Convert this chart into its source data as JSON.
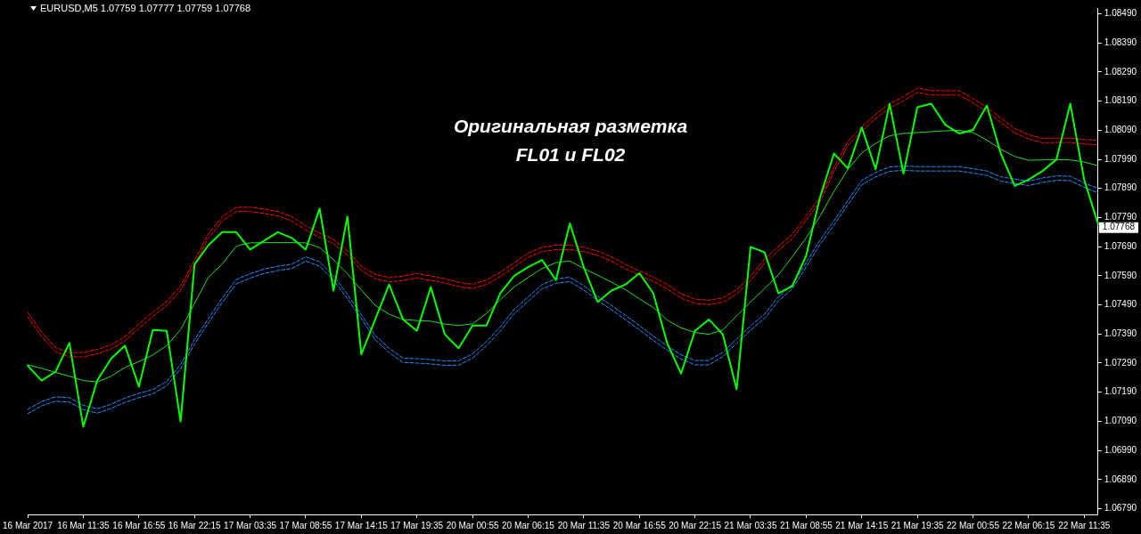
{
  "chart_data": {
    "type": "line",
    "title": "EURUSD,M5 1.07759 1.07777 1.07759 1.07768",
    "annotations": [
      "Оригинальная разметка",
      "FL01 и FL02",
      "1.07768"
    ],
    "categories": [
      "16 Mar 2017",
      null,
      null,
      null,
      "16 Mar 11:35",
      null,
      null,
      null,
      "16 Mar 16:55",
      null,
      null,
      null,
      "16 Mar 22:15",
      null,
      null,
      null,
      "17 Mar 03:35",
      null,
      null,
      null,
      "17 Mar 08:55",
      null,
      null,
      null,
      "17 Mar 14:15",
      null,
      null,
      null,
      "17 Mar 19:35",
      null,
      null,
      null,
      "20 Mar 00:55",
      null,
      null,
      null,
      "20 Mar 06:15",
      null,
      null,
      null,
      "20 Mar 11:35",
      null,
      null,
      null,
      "20 Mar 16:55",
      null,
      null,
      null,
      "20 Mar 22:15",
      null,
      null,
      null,
      "21 Mar 03:35",
      null,
      null,
      null,
      "21 Mar 08:55",
      null,
      null,
      null,
      "21 Mar 14:15",
      null,
      null,
      null,
      "21 Mar 19:35",
      null,
      null,
      null,
      "22 Mar 00:55",
      null,
      null,
      null,
      "22 Mar 06:15",
      null,
      null,
      null,
      "22 Mar 11:35",
      null
    ],
    "ylim": [
      1.0677,
      1.0851
    ],
    "yticks": [
      {
        "value": 1.0679,
        "label": "1.06790"
      },
      {
        "value": 1.0689,
        "label": "1.06890"
      },
      {
        "value": 1.0699,
        "label": "1.06990"
      },
      {
        "value": 1.0709,
        "label": "1.07090"
      },
      {
        "value": 1.0719,
        "label": "1.07190"
      },
      {
        "value": 1.0729,
        "label": "1.07290"
      },
      {
        "value": 1.0739,
        "label": "1.07390"
      },
      {
        "value": 1.0749,
        "label": "1.07490"
      },
      {
        "value": 1.0759,
        "label": "1.07590"
      },
      {
        "value": 1.0769,
        "label": "1.07690"
      },
      {
        "value": 1.0779,
        "label": "1.07790"
      },
      {
        "value": 1.0789,
        "label": "1.07890"
      },
      {
        "value": 1.0799,
        "label": "1.07990"
      },
      {
        "value": 1.0809,
        "label": "1.08090"
      },
      {
        "value": 1.0819,
        "label": "1.08190"
      },
      {
        "value": 1.0829,
        "label": "1.08290"
      },
      {
        "value": 1.0839,
        "label": "1.08390"
      },
      {
        "value": 1.0849,
        "label": "1.08490"
      }
    ],
    "marker": "none",
    "series": [
      {
        "color": "#00ff00",
        "line_style": "solid",
        "values": [
          1.07281,
          1.0723,
          1.0726,
          1.07359,
          1.07071,
          1.0723,
          1.07305,
          1.0735,
          1.07209,
          1.07404,
          1.07401,
          1.07089,
          1.07629,
          1.07695,
          1.0774,
          1.0774,
          1.0768,
          1.0771,
          1.0774,
          1.0772,
          1.0768,
          1.07821,
          1.07539,
          1.07794,
          1.0732,
          1.0744,
          1.0756,
          1.0744,
          1.07401,
          1.07551,
          1.07389,
          1.07341,
          1.07419,
          1.07419,
          1.0753,
          1.0759,
          1.0762,
          1.07644,
          1.07575,
          1.0777,
          1.0762,
          1.075,
          1.07539,
          1.0756,
          1.07599,
          1.0753,
          1.07359,
          1.07254,
          1.07401,
          1.0744,
          1.07389,
          1.072,
          1.07689,
          1.07671,
          1.0753,
          1.07554,
          1.07659,
          1.0786,
          1.0801,
          1.07959,
          1.081,
          1.07956,
          1.08181,
          1.07941,
          1.08169,
          1.08181,
          1.08109,
          1.08079,
          1.08091,
          1.08175,
          1.0801,
          1.07899,
          1.0792,
          1.0795,
          1.07989,
          1.08181,
          1.0792,
          1.07768
        ]
      },
      {
        "color": "#22dd22",
        "line_style": "solid",
        "values": [
          1.07284,
          1.07272,
          1.07258,
          1.07245,
          1.0723,
          1.07225,
          1.07245,
          1.07275,
          1.07295,
          1.07318,
          1.0735,
          1.07405,
          1.07495,
          1.07585,
          1.0763,
          1.07692,
          1.07703,
          1.07704,
          1.07704,
          1.07704,
          1.07703,
          1.07687,
          1.07645,
          1.07597,
          1.07541,
          1.07488,
          1.07458,
          1.0744,
          1.07436,
          1.07434,
          1.07424,
          1.07419,
          1.07425,
          1.0746,
          1.07507,
          1.07552,
          1.07584,
          1.07615,
          1.07635,
          1.07641,
          1.07615,
          1.07592,
          1.07568,
          1.07542,
          1.07511,
          1.07481,
          1.07438,
          1.07411,
          1.07395,
          1.07389,
          1.07404,
          1.07452,
          1.075,
          1.07546,
          1.07593,
          1.07655,
          1.0772,
          1.07795,
          1.0788,
          1.07955,
          1.08012,
          1.08045,
          1.08071,
          1.08079,
          1.08082,
          1.08085,
          1.08088,
          1.0809,
          1.08082,
          1.08056,
          1.08025,
          1.08,
          1.07987,
          1.07988,
          1.07989,
          1.07988,
          1.07981,
          1.07968
        ]
      },
      {
        "color": "#ff0000",
        "line_style": "dashed",
        "values": [
          1.07464,
          1.07396,
          1.07344,
          1.07326,
          1.07326,
          1.07337,
          1.07353,
          1.07381,
          1.07424,
          1.07465,
          1.07502,
          1.07555,
          1.07643,
          1.07734,
          1.07793,
          1.07825,
          1.07826,
          1.07819,
          1.07811,
          1.07793,
          1.07762,
          1.07737,
          1.07715,
          1.07676,
          1.07623,
          1.07595,
          1.07584,
          1.07589,
          1.07598,
          1.07589,
          1.0758,
          1.07568,
          1.07561,
          1.07575,
          1.07602,
          1.07635,
          1.07668,
          1.07688,
          1.07695,
          1.07695,
          1.07688,
          1.07675,
          1.07655,
          1.07629,
          1.07607,
          1.07586,
          1.0756,
          1.07528,
          1.0751,
          1.07506,
          1.07514,
          1.07542,
          1.07588,
          1.07647,
          1.07691,
          1.07732,
          1.07796,
          1.0786,
          1.07962,
          1.08052,
          1.08102,
          1.08145,
          1.08181,
          1.08206,
          1.08235,
          1.08226,
          1.08226,
          1.08226,
          1.08199,
          1.08169,
          1.08132,
          1.08096,
          1.08075,
          1.08062,
          1.08063,
          1.08063,
          1.08058,
          1.08055
        ]
      },
      {
        "color": "#ff0000",
        "line_style": "dashed",
        "values": [
          1.07449,
          1.07381,
          1.07329,
          1.07311,
          1.07311,
          1.07322,
          1.07338,
          1.07366,
          1.07409,
          1.0745,
          1.07487,
          1.0754,
          1.07628,
          1.07719,
          1.07778,
          1.0781,
          1.07811,
          1.07804,
          1.07796,
          1.07778,
          1.07747,
          1.07722,
          1.077,
          1.07661,
          1.07608,
          1.0758,
          1.07569,
          1.07574,
          1.07583,
          1.07574,
          1.07565,
          1.07553,
          1.07546,
          1.0756,
          1.07587,
          1.0762,
          1.07653,
          1.07673,
          1.0768,
          1.0768,
          1.07673,
          1.0766,
          1.0764,
          1.07614,
          1.07592,
          1.07571,
          1.07545,
          1.07513,
          1.07495,
          1.07491,
          1.07499,
          1.07527,
          1.07573,
          1.07632,
          1.07676,
          1.07717,
          1.07781,
          1.07845,
          1.07947,
          1.08037,
          1.08087,
          1.0813,
          1.08166,
          1.08191,
          1.0822,
          1.08211,
          1.08211,
          1.08211,
          1.08184,
          1.08154,
          1.08117,
          1.08081,
          1.0806,
          1.08047,
          1.08048,
          1.08048,
          1.08043,
          1.0804
        ]
      },
      {
        "color": "#1e90ff",
        "line_style": "dashed",
        "values": [
          1.07131,
          1.07158,
          1.07174,
          1.07171,
          1.07145,
          1.07133,
          1.07149,
          1.0717,
          1.07186,
          1.07199,
          1.07227,
          1.07285,
          1.0737,
          1.07443,
          1.07514,
          1.07577,
          1.07597,
          1.07613,
          1.07623,
          1.0763,
          1.07655,
          1.07638,
          1.0759,
          1.07526,
          1.07457,
          1.07385,
          1.07341,
          1.07307,
          1.07305,
          1.07302,
          1.07297,
          1.07298,
          1.07322,
          1.07364,
          1.07415,
          1.07475,
          1.07517,
          1.0756,
          1.07579,
          1.07585,
          1.07556,
          1.0752,
          1.07488,
          1.07454,
          1.07419,
          1.07383,
          1.07349,
          1.07319,
          1.07299,
          1.07299,
          1.07327,
          1.07373,
          1.07418,
          1.07458,
          1.07518,
          1.0756,
          1.07635,
          1.07713,
          1.07779,
          1.07849,
          1.07918,
          1.07945,
          1.07964,
          1.07967,
          1.07965,
          1.07965,
          1.07965,
          1.07965,
          1.07958,
          1.0795,
          1.0793,
          1.07922,
          1.07915,
          1.07926,
          1.07933,
          1.07932,
          1.07909,
          1.0789
        ]
      },
      {
        "color": "#1e90ff",
        "line_style": "dashed",
        "values": [
          1.07116,
          1.07143,
          1.07159,
          1.07156,
          1.0713,
          1.07118,
          1.07134,
          1.07155,
          1.07171,
          1.07184,
          1.07212,
          1.0727,
          1.07355,
          1.07428,
          1.07499,
          1.07562,
          1.07582,
          1.07598,
          1.07608,
          1.07615,
          1.0764,
          1.07623,
          1.07575,
          1.07511,
          1.07442,
          1.0737,
          1.07326,
          1.07292,
          1.0729,
          1.07287,
          1.07282,
          1.07283,
          1.07307,
          1.07349,
          1.074,
          1.0746,
          1.07502,
          1.07545,
          1.07564,
          1.0757,
          1.07541,
          1.07505,
          1.07473,
          1.07439,
          1.07404,
          1.07368,
          1.07334,
          1.07304,
          1.07284,
          1.07284,
          1.07312,
          1.07358,
          1.07403,
          1.07443,
          1.07503,
          1.07545,
          1.0762,
          1.07698,
          1.07764,
          1.07834,
          1.07903,
          1.0793,
          1.07949,
          1.07952,
          1.0795,
          1.0795,
          1.0795,
          1.0795,
          1.07943,
          1.07935,
          1.07915,
          1.07907,
          1.079,
          1.07911,
          1.07918,
          1.07917,
          1.07894,
          1.07875
        ]
      }
    ]
  }
}
